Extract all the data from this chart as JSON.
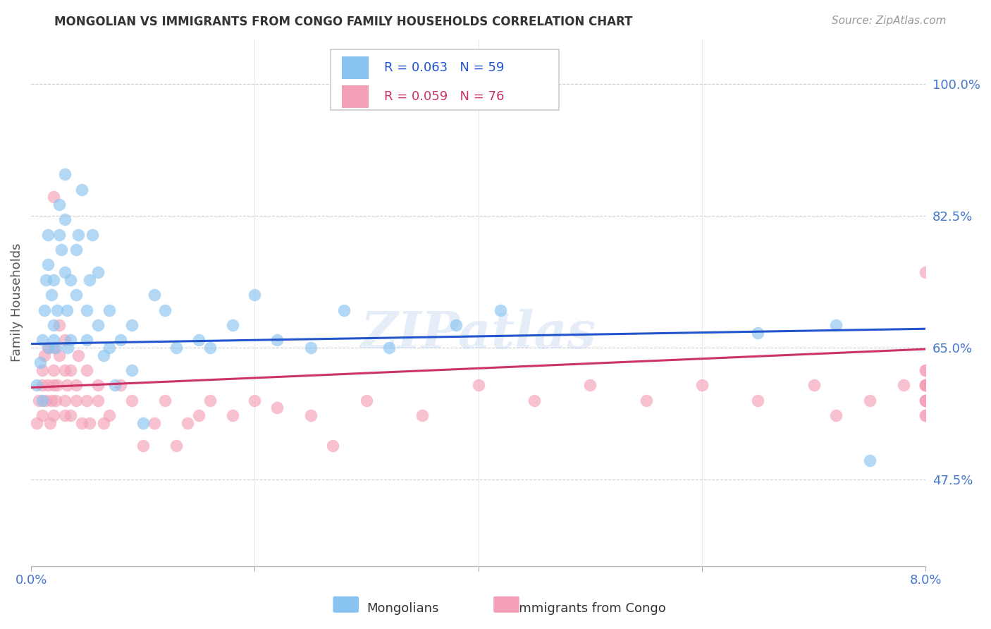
{
  "title": "MONGOLIAN VS IMMIGRANTS FROM CONGO FAMILY HOUSEHOLDS CORRELATION CHART",
  "source": "Source: ZipAtlas.com",
  "ylabel": "Family Households",
  "yticks": [
    0.475,
    0.65,
    0.825,
    1.0
  ],
  "ytick_labels": [
    "47.5%",
    "65.0%",
    "82.5%",
    "100.0%"
  ],
  "xtick_labels": [
    "0.0%",
    "8.0%"
  ],
  "xlim": [
    0.0,
    0.08
  ],
  "ylim": [
    0.36,
    1.06
  ],
  "legend1_r": "R = 0.063",
  "legend1_n": "N = 59",
  "legend2_r": "R = 0.059",
  "legend2_n": "N = 76",
  "legend_label1": "Mongolians",
  "legend_label2": "Immigrants from Congo",
  "color_blue": "#89c4f0",
  "color_pink": "#f4a0b8",
  "line_blue": "#2255cc",
  "line_pink": "#cc3366",
  "tick_color": "#4477cc",
  "background": "#ffffff",
  "watermark": "ZIPatlas",
  "mongolian_x": [
    0.0005,
    0.0008,
    0.001,
    0.001,
    0.0012,
    0.0013,
    0.0015,
    0.0015,
    0.0016,
    0.0018,
    0.002,
    0.002,
    0.002,
    0.0022,
    0.0023,
    0.0025,
    0.0025,
    0.0027,
    0.003,
    0.003,
    0.003,
    0.0032,
    0.0033,
    0.0035,
    0.0035,
    0.004,
    0.004,
    0.0042,
    0.0045,
    0.005,
    0.005,
    0.0052,
    0.0055,
    0.006,
    0.006,
    0.0065,
    0.007,
    0.007,
    0.0075,
    0.008,
    0.009,
    0.009,
    0.01,
    0.011,
    0.012,
    0.013,
    0.015,
    0.016,
    0.018,
    0.02,
    0.022,
    0.025,
    0.028,
    0.032,
    0.038,
    0.042,
    0.065,
    0.072,
    0.075
  ],
  "mongolian_y": [
    0.6,
    0.63,
    0.58,
    0.66,
    0.7,
    0.74,
    0.8,
    0.76,
    0.65,
    0.72,
    0.66,
    0.68,
    0.74,
    0.65,
    0.7,
    0.8,
    0.84,
    0.78,
    0.88,
    0.82,
    0.75,
    0.7,
    0.65,
    0.66,
    0.74,
    0.78,
    0.72,
    0.8,
    0.86,
    0.7,
    0.66,
    0.74,
    0.8,
    0.75,
    0.68,
    0.64,
    0.7,
    0.65,
    0.6,
    0.66,
    0.68,
    0.62,
    0.55,
    0.72,
    0.7,
    0.65,
    0.66,
    0.65,
    0.68,
    0.72,
    0.66,
    0.65,
    0.7,
    0.65,
    0.68,
    0.7,
    0.67,
    0.68,
    0.5
  ],
  "congo_x": [
    0.0005,
    0.0007,
    0.001,
    0.001,
    0.001,
    0.0012,
    0.0013,
    0.0015,
    0.0015,
    0.0017,
    0.0018,
    0.002,
    0.002,
    0.002,
    0.002,
    0.002,
    0.0022,
    0.0023,
    0.0025,
    0.0025,
    0.003,
    0.003,
    0.003,
    0.003,
    0.0032,
    0.0035,
    0.0035,
    0.004,
    0.004,
    0.0042,
    0.0045,
    0.005,
    0.005,
    0.0052,
    0.006,
    0.006,
    0.0065,
    0.007,
    0.008,
    0.009,
    0.01,
    0.011,
    0.012,
    0.013,
    0.014,
    0.015,
    0.016,
    0.018,
    0.02,
    0.022,
    0.025,
    0.027,
    0.03,
    0.035,
    0.04,
    0.045,
    0.05,
    0.055,
    0.06,
    0.065,
    0.07,
    0.072,
    0.075,
    0.078,
    0.08,
    0.08,
    0.08,
    0.08,
    0.08,
    0.08,
    0.08,
    0.08,
    0.08,
    0.08,
    0.08,
    0.08
  ],
  "congo_y": [
    0.55,
    0.58,
    0.56,
    0.6,
    0.62,
    0.64,
    0.58,
    0.6,
    0.65,
    0.55,
    0.58,
    0.56,
    0.6,
    0.62,
    0.65,
    0.85,
    0.58,
    0.6,
    0.64,
    0.68,
    0.56,
    0.58,
    0.62,
    0.66,
    0.6,
    0.56,
    0.62,
    0.6,
    0.58,
    0.64,
    0.55,
    0.58,
    0.62,
    0.55,
    0.6,
    0.58,
    0.55,
    0.56,
    0.6,
    0.58,
    0.52,
    0.55,
    0.58,
    0.52,
    0.55,
    0.56,
    0.58,
    0.56,
    0.58,
    0.57,
    0.56,
    0.52,
    0.58,
    0.56,
    0.6,
    0.58,
    0.6,
    0.58,
    0.6,
    0.58,
    0.6,
    0.56,
    0.58,
    0.6,
    0.58,
    0.6,
    0.62,
    0.58,
    0.56,
    0.6,
    0.58,
    0.56,
    0.6,
    0.62,
    0.6,
    0.75
  ]
}
